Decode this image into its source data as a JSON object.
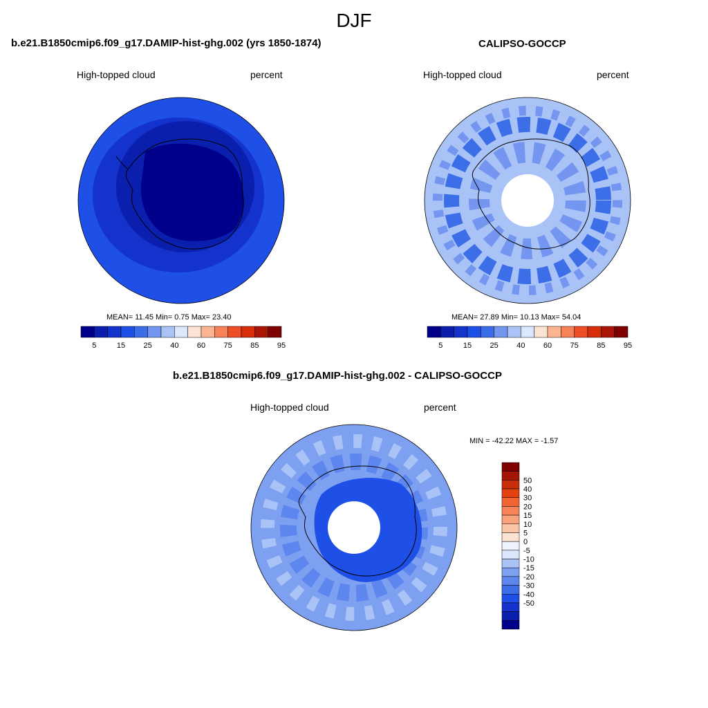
{
  "figure": {
    "season_title": "DJF"
  },
  "colors": {
    "ocean_dark": "#00008b",
    "continent_line": "#000000",
    "missing": "#ffffff"
  },
  "palette13": [
    "#00008b",
    "#0a1fad",
    "#1433cc",
    "#1e4fe6",
    "#3c6ee8",
    "#7596f0",
    "#a9c3f7",
    "#dbe7fc",
    "#fbe3d3",
    "#fbb591",
    "#f8825a",
    "#ef4f26",
    "#d62e0b",
    "#aa1506",
    "#7f0000"
  ],
  "diff_palette": [
    "#00008b",
    "#0a1fad",
    "#1433cc",
    "#1e4fe6",
    "#3c6ee8",
    "#5d87ee",
    "#7ea0f1",
    "#a9c3f7",
    "#d9e6fb",
    "#eef3fd",
    "#fbe3d3",
    "#fbc4a4",
    "#f9a37c",
    "#f78458",
    "#f26434",
    "#e3410f",
    "#c62d08",
    "#a31505",
    "#7f0000"
  ],
  "panels": [
    {
      "title": "b.e21.B1850cmip6.f09_g17.DAMIP-hist-ghg.002 (yrs 1850-1874)",
      "variable": "High-topped cloud",
      "units": "percent",
      "stats": "MEAN=  11.45  Min=   0.75  Max=  23.40",
      "colorbar_ticks": [
        "5",
        "15",
        "25",
        "40",
        "60",
        "75",
        "85",
        "95"
      ]
    },
    {
      "title": "CALIPSO-GOCCP",
      "variable": "High-topped cloud",
      "units": "percent",
      "stats": "MEAN=  27.89  Min=  10.13  Max=  54.04",
      "colorbar_ticks": [
        "5",
        "15",
        "25",
        "40",
        "60",
        "75",
        "85",
        "95"
      ]
    },
    {
      "title": "b.e21.B1850cmip6.f09_g17.DAMIP-hist-ghg.002 - CALIPSO-GOCCP",
      "variable": "High-topped cloud",
      "units": "percent",
      "stats": "MIN = -42.22 MAX =  -1.57",
      "colorbar_ticks": [
        "50",
        "40",
        "30",
        "20",
        "15",
        "10",
        "5",
        "0",
        "-5",
        "-10",
        "-15",
        "-20",
        "-30",
        "-40",
        "-50"
      ]
    }
  ],
  "chart_data": [
    {
      "type": "heatmap",
      "title": "b.e21.B1850cmip6.f09_g17.DAMIP-hist-ghg.002 (yrs 1850-1874)",
      "projection": "south polar stereographic",
      "variable": "High-topped cloud",
      "units": "percent",
      "mean": 11.45,
      "min": 0.75,
      "max": 23.4,
      "contour_levels": [
        5,
        10,
        15,
        20,
        25,
        30,
        40,
        50,
        60,
        70,
        75,
        80,
        85,
        90,
        95
      ]
    },
    {
      "type": "heatmap",
      "title": "CALIPSO-GOCCP",
      "projection": "south polar stereographic",
      "variable": "High-topped cloud",
      "units": "percent",
      "mean": 27.89,
      "min": 10.13,
      "max": 54.04,
      "contour_levels": [
        5,
        10,
        15,
        20,
        25,
        30,
        40,
        50,
        60,
        70,
        75,
        80,
        85,
        90,
        95
      ]
    },
    {
      "type": "heatmap",
      "title": "b.e21.B1850cmip6.f09_g17.DAMIP-hist-ghg.002 - CALIPSO-GOCCP",
      "projection": "south polar stereographic",
      "variable": "High-topped cloud",
      "units": "percent",
      "min": -42.22,
      "max": -1.57,
      "contour_levels": [
        -50,
        -40,
        -30,
        -20,
        -15,
        -10,
        -5,
        0,
        5,
        10,
        15,
        20,
        30,
        40,
        50
      ]
    }
  ]
}
